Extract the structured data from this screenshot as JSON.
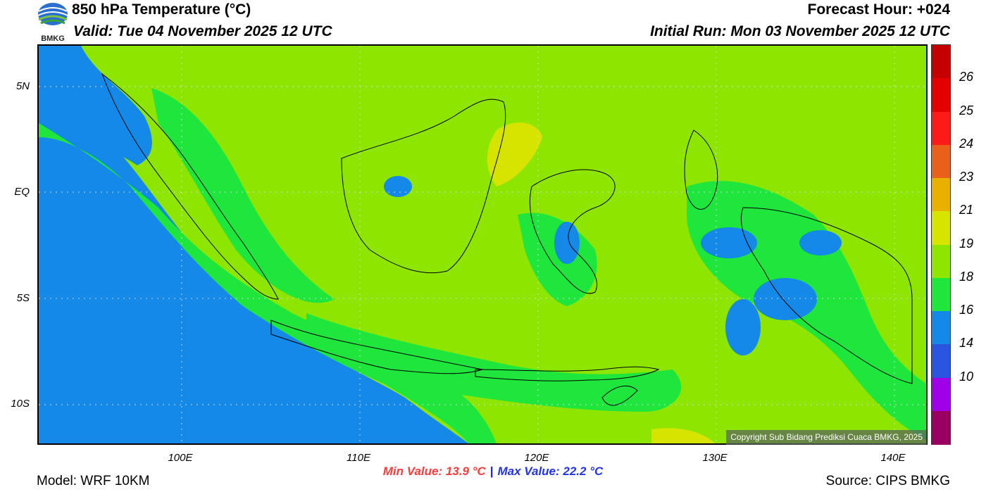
{
  "header": {
    "title": "850 hPa Temperature (°C)",
    "valid": "Valid: Tue 04 November 2025 12 UTC",
    "forecast_hour": "Forecast Hour: +024",
    "initial_run": "Initial Run: Mon 03 November 2025 12 UTC"
  },
  "logo": {
    "text": "BMKG",
    "icon": "bmkg-logo-icon"
  },
  "map": {
    "lat_labels": [
      "5N",
      "EQ",
      "5S",
      "10S"
    ],
    "lon_labels": [
      "100E",
      "110E",
      "120E",
      "130E",
      "140E"
    ],
    "copyright": "Copyright Sub Bidang Prediksi Cuaca BMKG, 2025"
  },
  "stats": {
    "min": "Min Value: 13.9 °C",
    "separator": "|",
    "max": "Max Value: 22.2 °C"
  },
  "footer": {
    "model": "Model: WRF 10KM",
    "source": "Source: CIPS BMKG"
  },
  "colorbar": {
    "labels": [
      "26",
      "25",
      "24",
      "23",
      "21",
      "19",
      "18",
      "16",
      "14",
      "10"
    ],
    "colors": [
      "#c40000",
      "#e50000",
      "#ff1a1a",
      "#e8601a",
      "#e9b000",
      "#d7e400",
      "#8ee600",
      "#1ee63c",
      "#1489e8",
      "#2a55e0",
      "#a000e8",
      "#9a0060"
    ]
  }
}
